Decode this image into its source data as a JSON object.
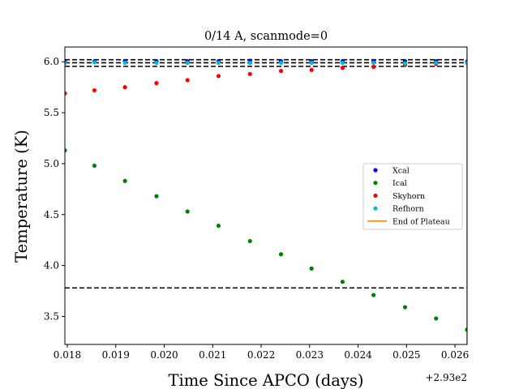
{
  "chart_data": {
    "type": "scatter",
    "title": "0/14 A, scanmode=0",
    "xlabel": "Time Since APCO (days)",
    "ylabel": "Temperature (K)",
    "x_offset_label": "+2.93e2",
    "xlim": [
      0.01795,
      0.02625
    ],
    "ylim": [
      3.225,
      6.145
    ],
    "x_ticks": [
      0.018,
      0.019,
      0.02,
      0.021,
      0.022,
      0.023,
      0.024,
      0.025,
      0.026
    ],
    "x_tick_labels": [
      "0.018",
      "0.019",
      "0.020",
      "0.021",
      "0.022",
      "0.023",
      "0.024",
      "0.025",
      "0.026"
    ],
    "y_ticks": [
      3.5,
      4.0,
      4.5,
      5.0,
      5.5,
      6.0
    ],
    "y_tick_labels": [
      "3.5",
      "4.0",
      "4.5",
      "5.0",
      "5.5",
      "6.0"
    ],
    "grid": false,
    "legend_position": "center-right",
    "x": [
      0.01795,
      0.01856,
      0.01919,
      0.01984,
      0.02048,
      0.02112,
      0.02177,
      0.02241,
      0.02304,
      0.02368,
      0.02432,
      0.02497,
      0.02561,
      0.02625
    ],
    "series": [
      {
        "name": "Xcal",
        "color": "#0000ff",
        "marker": "dot",
        "values": [
          6.0,
          6.005,
          6.005,
          6.005,
          6.005,
          6.005,
          6.01,
          6.005,
          6.005,
          6.005,
          6.005,
          6.005,
          6.005,
          6.0
        ]
      },
      {
        "name": "Ical",
        "color": "#008000",
        "marker": "dot",
        "values": [
          5.13,
          4.98,
          4.83,
          4.68,
          4.53,
          4.39,
          4.24,
          4.11,
          3.97,
          3.84,
          3.71,
          3.59,
          3.48,
          3.37
        ]
      },
      {
        "name": "Skyhorn",
        "color": "#ff0000",
        "marker": "dot",
        "values": [
          5.69,
          5.72,
          5.75,
          5.79,
          5.82,
          5.86,
          5.88,
          5.91,
          5.92,
          5.94,
          5.95,
          5.97,
          5.98,
          5.99
        ]
      },
      {
        "name": "Refhorn",
        "color": "#00bfbf",
        "marker": "dot",
        "values": [
          5.99,
          5.995,
          5.99,
          5.99,
          5.99,
          5.99,
          5.99,
          5.99,
          5.99,
          5.99,
          5.99,
          5.985,
          5.99,
          5.99
        ]
      },
      {
        "name": "End of Plateau",
        "color": "#ff7f0e",
        "marker": "vline",
        "x_value": 0.02625
      }
    ],
    "hlines": [
      {
        "y": 6.02,
        "color": "#000000",
        "style": "dashed"
      },
      {
        "y": 5.99,
        "color": "#000000",
        "style": "dashed"
      },
      {
        "y": 5.955,
        "color": "#000000",
        "style": "dashed"
      },
      {
        "y": 3.78,
        "color": "#000000",
        "style": "dashed"
      }
    ]
  }
}
